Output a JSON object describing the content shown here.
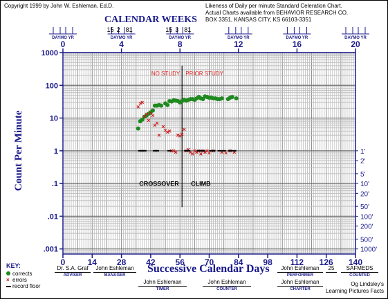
{
  "header": {
    "copyright": "Copyright 1999 by John W. Eshleman, Ed.D.",
    "likeness_lines": [
      "Likeness of Daily per minute Standard Celeration Chart.",
      "Actual Charts available from BEHAVIOR RESEARCH CO.",
      "BOX 3351, KANSAS CITY, KS 66103-3351"
    ],
    "calendar_weeks_title": "CALENDAR WEEKS",
    "daymo_yr_label": "DAYMO YR",
    "date_stamps": [
      {
        "day": "15",
        "mo": "2",
        "yr": "81"
      },
      {
        "day": "15",
        "mo": "3",
        "yr": "81"
      }
    ]
  },
  "chart_data": {
    "type": "scatter",
    "title": "",
    "xlabel": "Successive Calendar Days",
    "ylabel": "Count Per Minute",
    "x_top_label": "CALENDAR WEEKS",
    "xlim": [
      0,
      140
    ],
    "ylim": [
      0.0007,
      1000
    ],
    "y_scale": "log",
    "grid": true,
    "x_ticks": [
      0,
      14,
      28,
      42,
      56,
      70,
      84,
      98,
      112,
      126,
      140
    ],
    "x_tick_labels": [
      "0",
      "14",
      "28",
      "42",
      "56",
      "70",
      "84",
      "98",
      "112",
      "126",
      "140"
    ],
    "x_top_ticks": [
      0,
      4,
      8,
      12,
      16,
      20
    ],
    "x_top_tick_labels": [
      "0",
      "4",
      "8",
      "12",
      "16",
      "20"
    ],
    "y_ticks": [
      1000,
      100,
      10,
      1,
      0.1,
      0.01,
      0.001
    ],
    "y_tick_labels": [
      "1000",
      "100",
      "10",
      "1",
      ".1",
      ".01",
      ".001"
    ],
    "right_axis_labels": [
      {
        "value": 1,
        "label": "1'"
      },
      {
        "value": 0.5,
        "label": "2'"
      },
      {
        "value": 0.2,
        "label": "5'"
      },
      {
        "value": 0.1,
        "label": "10'"
      },
      {
        "value": 0.05,
        "label": "20'"
      },
      {
        "value": 0.02,
        "label": "50'"
      },
      {
        "value": 0.01,
        "label": "100'"
      },
      {
        "value": 0.005,
        "label": "200'"
      },
      {
        "value": 0.002,
        "label": "500'"
      },
      {
        "value": 0.001,
        "label": "1000'"
      }
    ],
    "phase_line_day": 57,
    "phase_labels": {
      "left": "NO STUDY",
      "right": "PRIOR STUDY"
    },
    "annotations": [
      {
        "text": "CROSSOVER",
        "x": 46,
        "y": 0.085
      },
      {
        "text": "CLIMB",
        "x": 66,
        "y": 0.085
      }
    ],
    "series": [
      {
        "name": "corrects",
        "color": "#1f8a1f",
        "marker": "dot",
        "points": [
          [
            36,
            4.8
          ],
          [
            37,
            8
          ],
          [
            38,
            9
          ],
          [
            39,
            11
          ],
          [
            40,
            12
          ],
          [
            41,
            13.5
          ],
          [
            42,
            15
          ],
          [
            43,
            17
          ],
          [
            44,
            24
          ],
          [
            45,
            24
          ],
          [
            46,
            25
          ],
          [
            47,
            24
          ],
          [
            49,
            28
          ],
          [
            50,
            25
          ],
          [
            51,
            33
          ],
          [
            52,
            32
          ],
          [
            53,
            35
          ],
          [
            54,
            34
          ],
          [
            55,
            33
          ],
          [
            56,
            30
          ],
          [
            57,
            33
          ],
          [
            58,
            36
          ],
          [
            59,
            34
          ],
          [
            60,
            36
          ],
          [
            61,
            38
          ],
          [
            62,
            38
          ],
          [
            63,
            36
          ],
          [
            64,
            40
          ],
          [
            65,
            44
          ],
          [
            66,
            40
          ],
          [
            67,
            38
          ],
          [
            68,
            46
          ],
          [
            69,
            44
          ],
          [
            70,
            42
          ],
          [
            71,
            42
          ],
          [
            72,
            40
          ],
          [
            73,
            40
          ],
          [
            74,
            38
          ],
          [
            75,
            38
          ],
          [
            76,
            40
          ],
          [
            79,
            38
          ],
          [
            80,
            42
          ],
          [
            81,
            44
          ],
          [
            83,
            40
          ]
        ]
      },
      {
        "name": "errors",
        "color": "#d01818",
        "marker": "x",
        "points": [
          [
            36,
            22
          ],
          [
            37,
            28
          ],
          [
            38,
            30
          ],
          [
            39,
            11
          ],
          [
            40,
            13
          ],
          [
            41,
            8.5
          ],
          [
            42,
            14
          ],
          [
            43,
            12
          ],
          [
            44,
            6
          ],
          [
            45,
            7
          ],
          [
            46,
            3
          ],
          [
            48,
            5.5
          ],
          [
            49,
            4.2
          ],
          [
            50,
            3.7
          ],
          [
            51,
            4
          ],
          [
            52,
            1
          ],
          [
            53,
            1
          ],
          [
            54,
            0.9
          ],
          [
            55,
            3
          ],
          [
            56,
            2.8
          ],
          [
            57,
            3.2
          ],
          [
            58,
            4.5
          ],
          [
            59,
            1
          ],
          [
            60,
            1.1
          ],
          [
            61,
            0.9
          ],
          [
            62,
            0.8
          ],
          [
            63,
            1
          ],
          [
            64,
            0.9
          ],
          [
            65,
            1
          ],
          [
            66,
            0.8
          ],
          [
            67,
            1
          ],
          [
            68,
            0.9
          ],
          [
            69,
            1
          ],
          [
            70,
            0.85
          ],
          [
            72,
            1
          ],
          [
            76,
            0.9
          ],
          [
            78,
            0.85
          ],
          [
            80,
            1
          ],
          [
            82,
            0.9
          ]
        ]
      },
      {
        "name": "record floor",
        "color": "#000000",
        "marker": "dash",
        "points": [
          [
            37,
            1
          ],
          [
            38,
            1
          ],
          [
            39,
            1
          ],
          [
            44,
            1
          ],
          [
            45,
            1
          ],
          [
            51,
            1
          ],
          [
            59,
            1
          ],
          [
            60,
            1
          ],
          [
            65,
            1
          ],
          [
            66,
            1
          ],
          [
            67,
            1
          ],
          [
            71,
            1
          ],
          [
            72,
            1
          ],
          [
            75,
            1
          ],
          [
            77,
            1
          ],
          [
            80,
            1
          ],
          [
            82,
            1
          ]
        ]
      }
    ]
  },
  "key": {
    "title": "KEY:",
    "items": [
      {
        "label": "corrects",
        "color": "#1f8a1f"
      },
      {
        "label": "errors",
        "color": "#d01818"
      },
      {
        "label": "record floor",
        "color": "#000000"
      }
    ]
  },
  "signatures": {
    "adviser": {
      "value": "Dr. S.A. Graf",
      "label": "ADVISER"
    },
    "manager": {
      "value": "John Eshleman",
      "label": "MANAGER"
    },
    "timer": {
      "value": "John Eshleman",
      "label": "TIMER"
    },
    "counter": {
      "value": "John Eshleman",
      "label": "COUNTER"
    },
    "performer": {
      "value": "John Eshleman",
      "label": "PERFORMER"
    },
    "charter": {
      "value": "John Eshleman",
      "label": "CHARTER"
    },
    "age": {
      "value": "25"
    },
    "counted": {
      "value": "SAFMEDS",
      "label": "COUNTED"
    },
    "credit_lines": [
      "Og Lindsley's",
      "Learning Pictures Facts"
    ]
  }
}
